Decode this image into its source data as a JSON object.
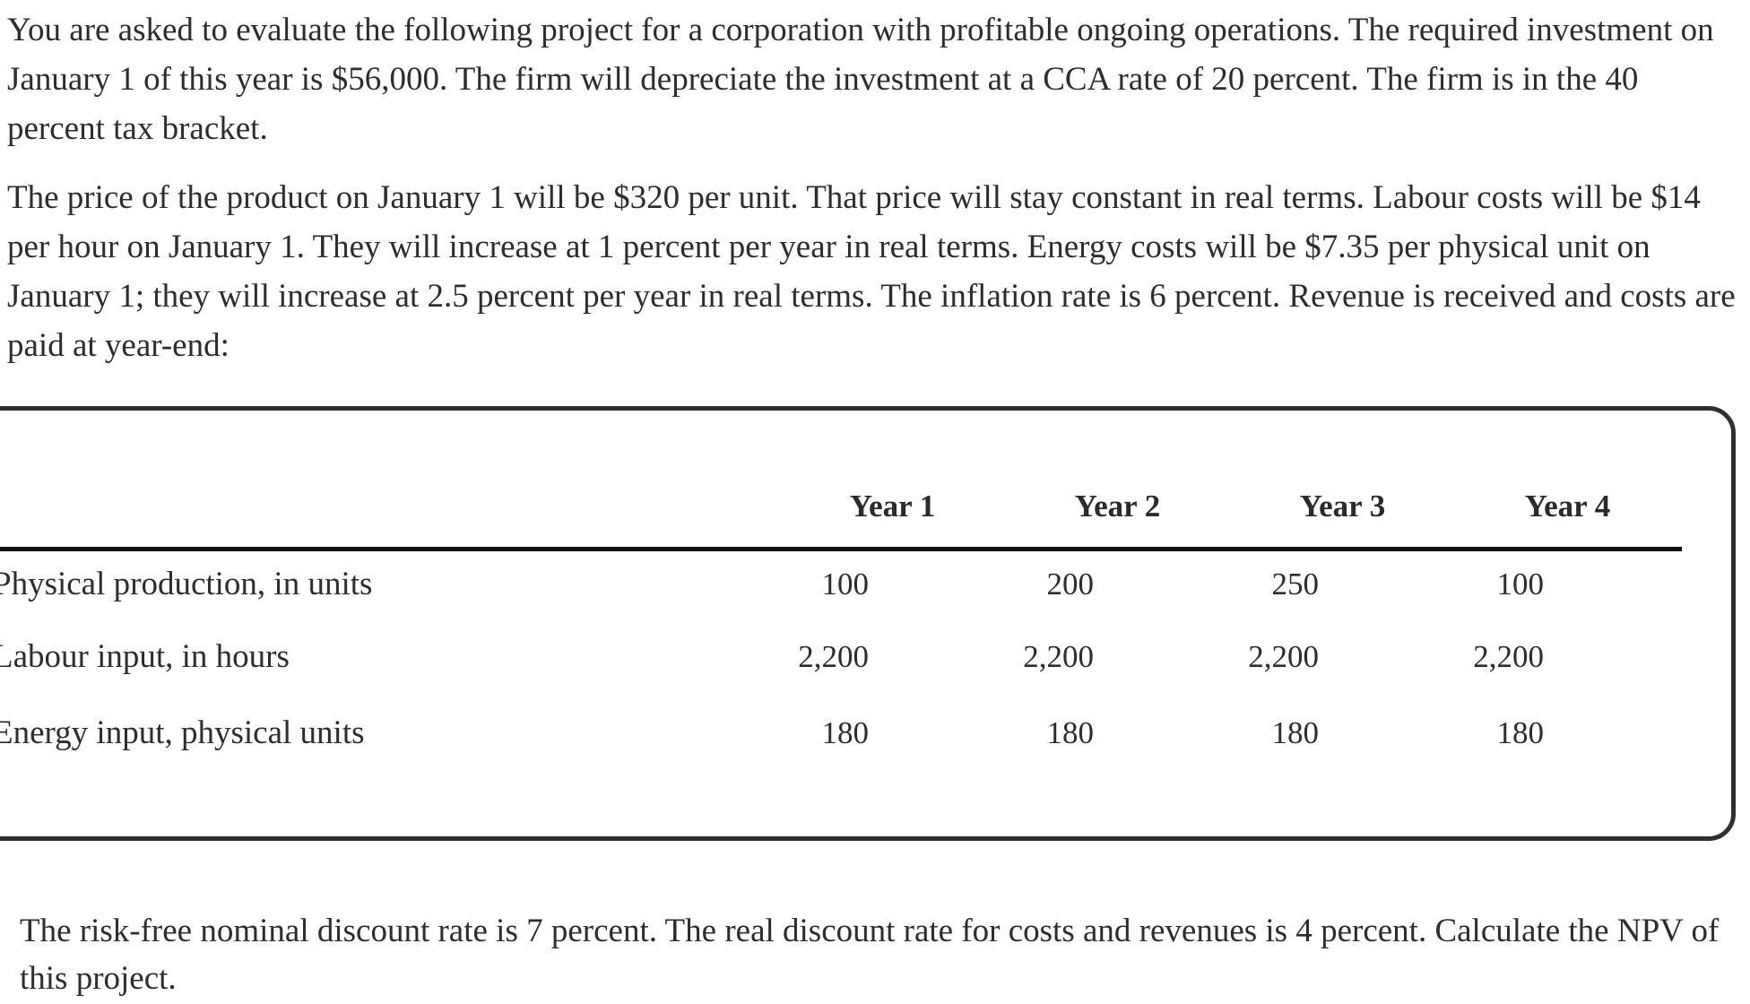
{
  "document": {
    "paragraph1": "You are asked to evaluate the following project for a corporation with profitable ongoing operations. The required investment on January 1 of this year is $56,000. The firm will depreciate the investment at a CCA rate of 20 percent. The firm is in the 40 percent tax bracket.",
    "paragraph2": "The price of the product on January 1 will be $320 per unit. That price will stay constant in real terms. Labour costs will be $14 per hour on January 1. They will increase at 1 percent per year in real terms. Energy costs will be $7.35 per physical unit on January 1; they will increase at 2.5 percent per year in real terms. The inflation rate is 6 percent. Revenue is received and costs are paid at year-end:",
    "paragraph3": "The risk-free nominal discount rate is 7 percent. The real discount rate for costs and revenues is 4 percent. Calculate the NPV of this project."
  },
  "table": {
    "column_headers": [
      "Year 1",
      "Year 2",
      "Year 3",
      "Year 4"
    ],
    "rows": [
      {
        "label": "Physical production, in units",
        "values": [
          "100",
          "200",
          "250",
          "100"
        ]
      },
      {
        "label": "Labour input, in hours",
        "values": [
          "2,200",
          "2,200",
          "2,200",
          "2,200"
        ]
      },
      {
        "label": "Energy input, physical units",
        "values": [
          "180",
          "180",
          "180",
          "180"
        ]
      }
    ]
  },
  "colors": {
    "text": "#2d2d2d",
    "table_border": "#303030",
    "header_rule": "#111111",
    "background": "#ffffff"
  }
}
